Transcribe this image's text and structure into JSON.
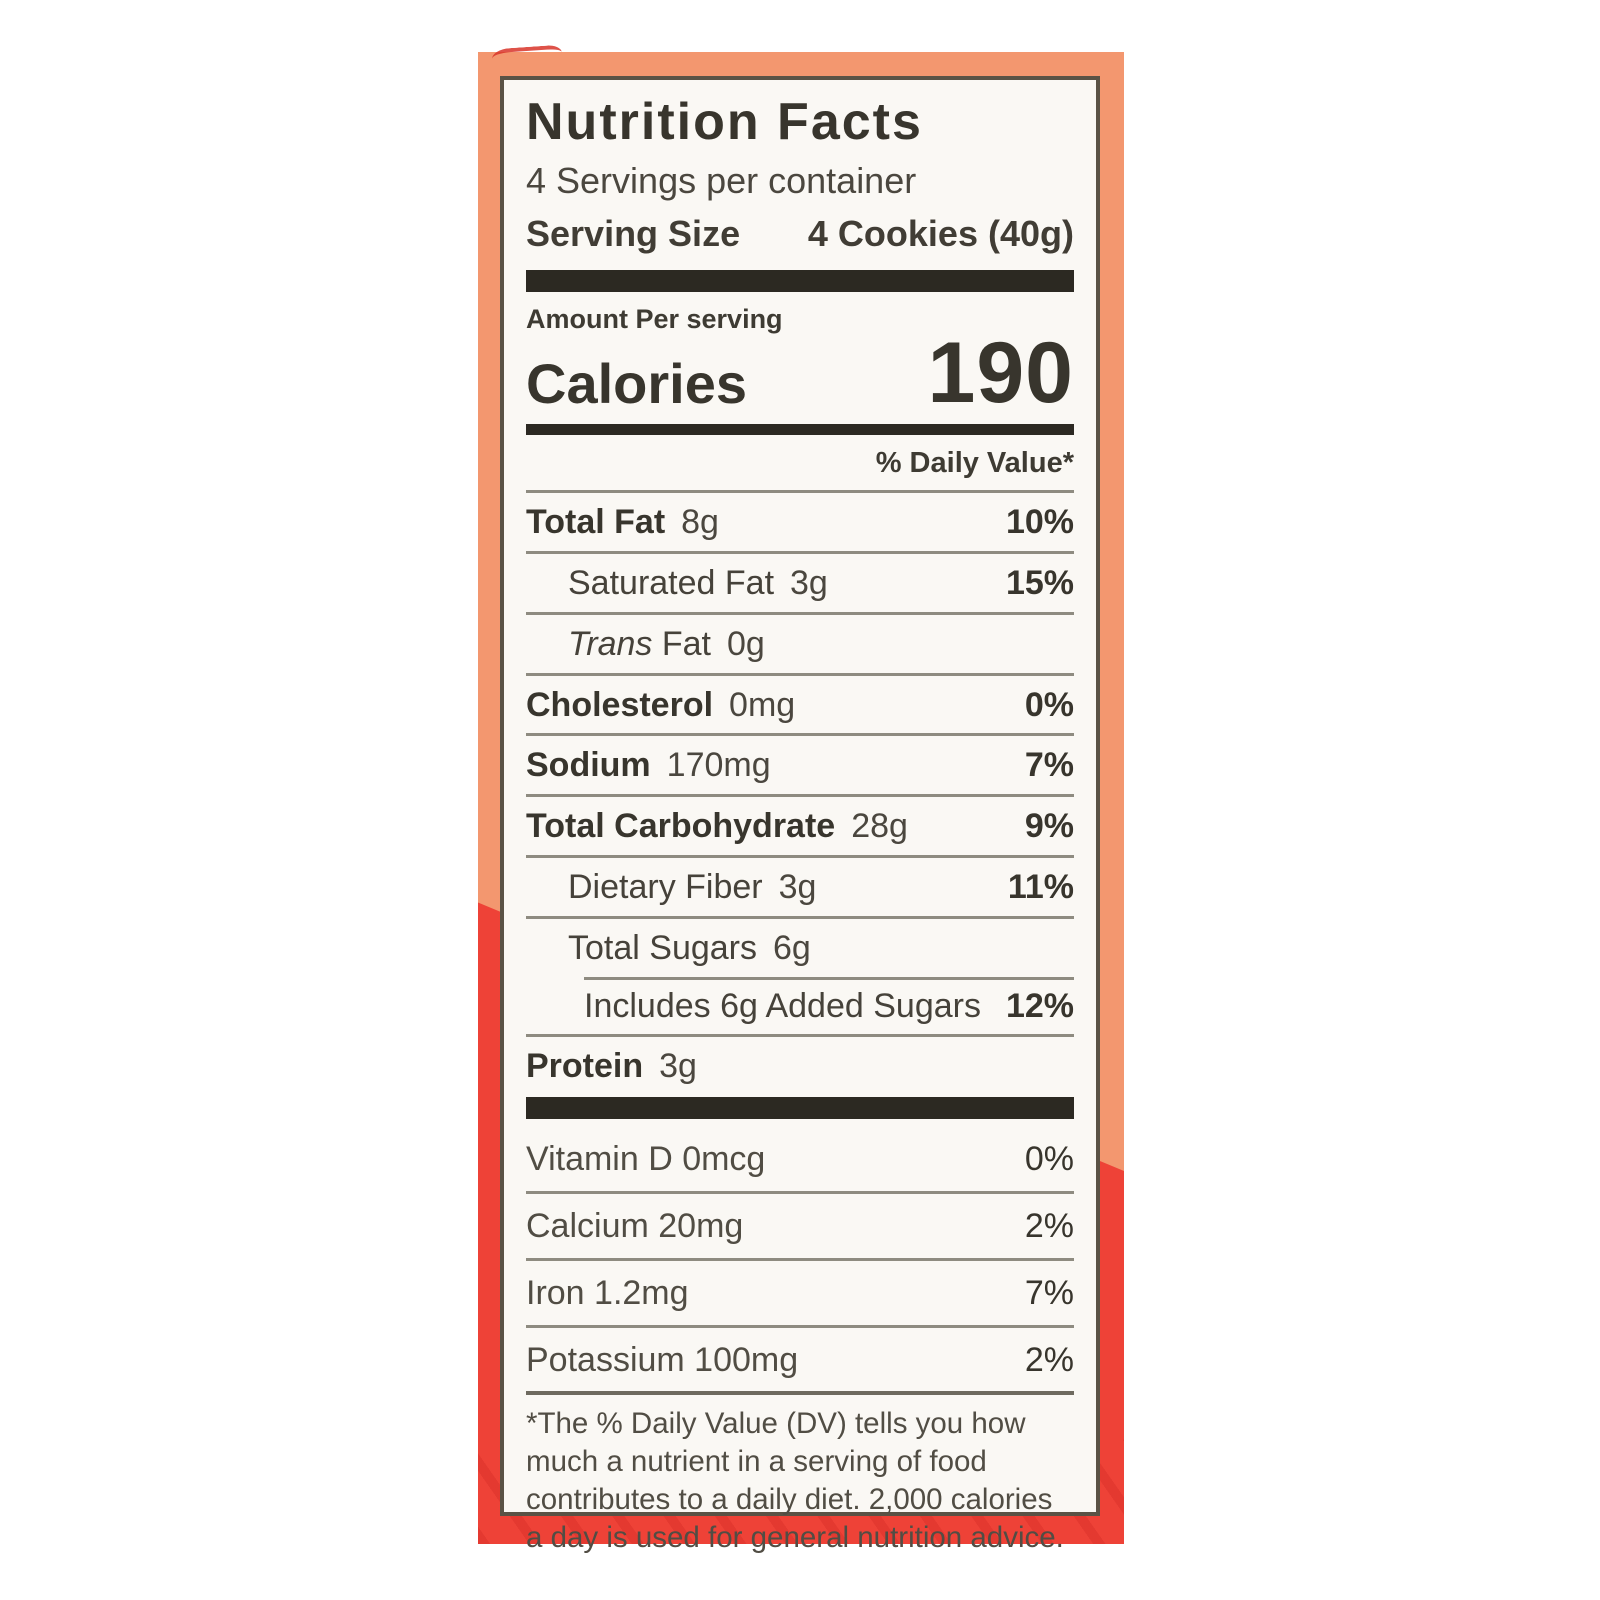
{
  "label": {
    "title": "Nutrition Facts",
    "servings_per_container": "4 Servings per container",
    "serving_size_label": "Serving Size",
    "serving_size_value": "4 Cookies (40g)",
    "amount_per_label": "Amount Per serving",
    "calories_label": "Calories",
    "calories_value": "190",
    "daily_value_header": "% Daily Value*",
    "rows": [
      {
        "name": "Total Fat",
        "amount": "8g",
        "dv": "10%",
        "bold": true,
        "indent": 0
      },
      {
        "name": "Saturated Fat",
        "amount": "3g",
        "dv": "15%",
        "bold": false,
        "indent": 1
      },
      {
        "name_italic": "Trans",
        "name": " Fat",
        "amount": "0g",
        "dv": "",
        "bold": false,
        "indent": 1
      },
      {
        "name": "Cholesterol",
        "amount": "0mg",
        "dv": "0%",
        "bold": true,
        "indent": 0
      },
      {
        "name": "Sodium",
        "amount": "170mg",
        "dv": "7%",
        "bold": true,
        "indent": 0
      },
      {
        "name": "Total Carbohydrate",
        "amount": "28g",
        "dv": "9%",
        "bold": true,
        "indent": 0
      },
      {
        "name": "Dietary Fiber",
        "amount": "3g",
        "dv": "11%",
        "bold": false,
        "indent": 1
      },
      {
        "name": "Total Sugars",
        "amount": "6g",
        "dv": "",
        "bold": false,
        "indent": 1
      },
      {
        "name": "Includes 6g Added Sugars",
        "amount": "",
        "dv": "12%",
        "bold": false,
        "indent": 2,
        "sep_indent": true
      },
      {
        "name": "Protein",
        "amount": "3g",
        "dv": "",
        "bold": true,
        "indent": 0
      }
    ],
    "vitamins": [
      {
        "name": "Vitamin D 0mcg",
        "dv": "0%"
      },
      {
        "name": "Calcium 20mg",
        "dv": "2%"
      },
      {
        "name": "Iron 1.2mg",
        "dv": "7%"
      },
      {
        "name": "Potassium 100mg",
        "dv": "2%"
      }
    ],
    "footnote": "*The % Daily Value (DV) tells you how much a nutrient in a serving of food contributes to a daily diet. 2,000 calories a day is used for general nutrition advice."
  },
  "package_colors": {
    "salmon_top": "#f3976f",
    "red_bottom": "#ee4237",
    "label_background": "#faf8f4",
    "label_border": "#5a5245",
    "bar_black": "#2c2922"
  }
}
